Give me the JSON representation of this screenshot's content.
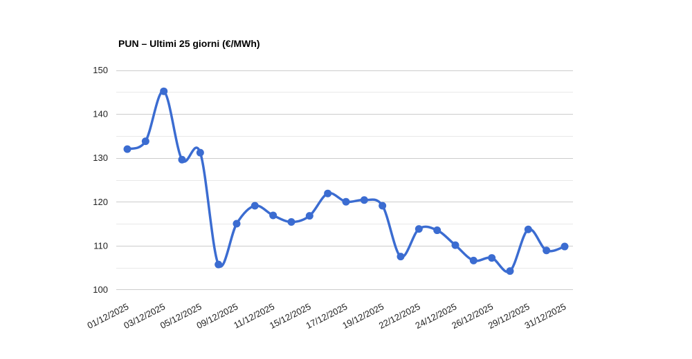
{
  "chart_data": {
    "type": "line",
    "title": "PUN – Ultimi 25 giorni (€/MWh)",
    "xlabel": "",
    "ylabel": "",
    "ylim": [
      100,
      150
    ],
    "y_tick_labels": [
      "100",
      "110",
      "120",
      "130",
      "140",
      "150"
    ],
    "y_minor_step": 5,
    "grid": "horizontal",
    "legend_position": "none",
    "curve": "smooth",
    "markers": true,
    "n_points": 25,
    "x_tick_point_step": 2,
    "x_tick_labels": [
      "01/12/2025",
      "03/12/2025",
      "05/12/2025",
      "09/12/2025",
      "11/12/2025",
      "15/12/2025",
      "17/12/2025",
      "19/12/2025",
      "22/12/2025",
      "24/12/2025",
      "26/12/2025",
      "29/12/2025",
      "31/12/2025"
    ],
    "series": [
      {
        "name": "PUN",
        "values": [
          132.0,
          133.8,
          145.2,
          129.6,
          131.2,
          105.7,
          115.0,
          119.1,
          116.9,
          115.4,
          116.8,
          121.9,
          120.0,
          120.4,
          119.1,
          107.5,
          113.8,
          113.5,
          110.1,
          106.6,
          107.2,
          104.2,
          113.7,
          108.9,
          109.8
        ]
      }
    ],
    "colors": {
      "series": "#3b6cd1",
      "grid_major": "#cccccc",
      "grid_minor": "#e8e8e8",
      "axis_text": "#222222",
      "title_text": "#000000",
      "background": "#ffffff"
    }
  }
}
